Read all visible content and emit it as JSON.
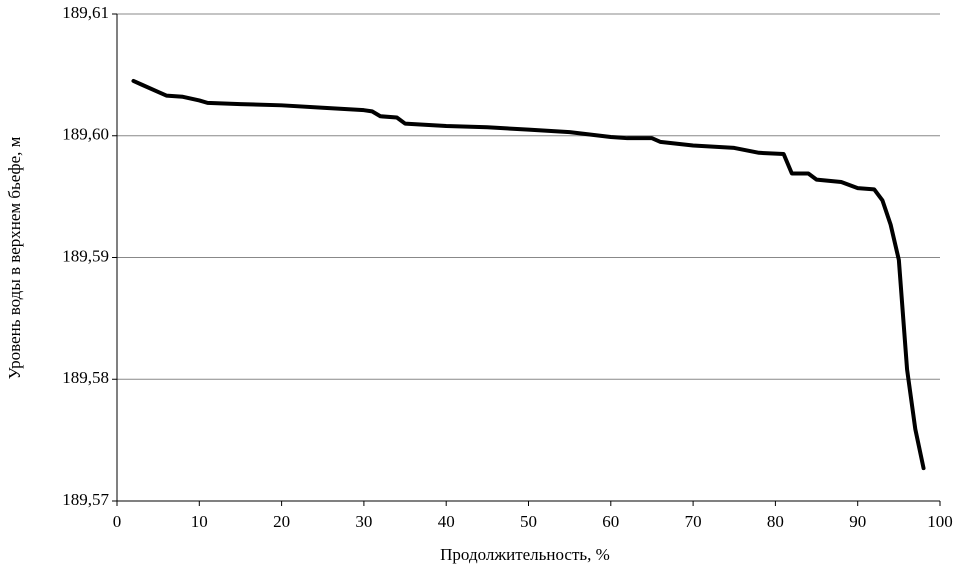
{
  "chart_data": {
    "type": "line",
    "xlabel": "Продолжительность, %",
    "ylabel": "Уровень воды в верхнем бьефе, м",
    "x": [
      2,
      3,
      5,
      6,
      8,
      10,
      11,
      15,
      20,
      25,
      30,
      31,
      32,
      34,
      35,
      40,
      45,
      50,
      55,
      60,
      62,
      65,
      66,
      70,
      75,
      78,
      81,
      82,
      84,
      85,
      88,
      90,
      92,
      93,
      94,
      95,
      96,
      97,
      98
    ],
    "series": [
      {
        "color": "#000000",
        "values": [
          189.6045,
          189.6042,
          189.6036,
          189.6033,
          189.6032,
          189.6029,
          189.6027,
          189.6026,
          189.6025,
          189.6023,
          189.6021,
          189.602,
          189.6016,
          189.6015,
          189.601,
          189.6008,
          189.6007,
          189.6005,
          189.6003,
          189.5999,
          189.5998,
          189.5998,
          189.5995,
          189.5992,
          189.599,
          189.5986,
          189.5985,
          189.5969,
          189.5969,
          189.5964,
          189.5962,
          189.5957,
          189.5956,
          189.5947,
          189.5927,
          189.5898,
          189.5808,
          189.5759,
          189.5727
        ]
      }
    ],
    "xlim": [
      0,
      100
    ],
    "xticks": [
      0,
      10,
      20,
      30,
      40,
      50,
      60,
      70,
      80,
      90,
      100
    ],
    "ylim": [
      189.57,
      189.61
    ],
    "yticks": [
      {
        "value": 189.57,
        "label": "189,57"
      },
      {
        "value": 189.58,
        "label": "189,58"
      },
      {
        "value": 189.59,
        "label": "189,59"
      },
      {
        "value": 189.6,
        "label": "189,60"
      },
      {
        "value": 189.61,
        "label": "189,61"
      }
    ],
    "grid": true
  }
}
